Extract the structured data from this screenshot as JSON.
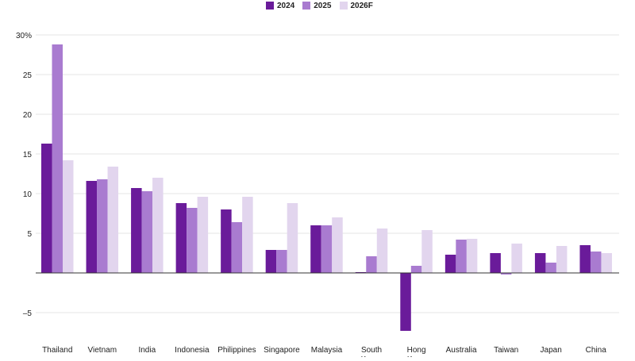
{
  "chart_data": {
    "type": "bar",
    "categories": [
      "Thailand",
      "Vietnam",
      "India",
      "Indonesia",
      "Philippines",
      "Singapore",
      "Malaysia",
      "South Korea",
      "Hong Kong",
      "Australia",
      "Taiwan",
      "Japan",
      "China"
    ],
    "series": [
      {
        "name": "2024",
        "color": "#6a1b9a",
        "values": [
          16.3,
          11.6,
          10.7,
          8.8,
          8.0,
          2.9,
          6.0,
          0.1,
          -7.3,
          2.3,
          2.5,
          2.5,
          3.5
        ]
      },
      {
        "name": "2025",
        "color": "#a97bd0",
        "values": [
          28.8,
          11.8,
          10.3,
          8.2,
          6.4,
          2.9,
          6.0,
          2.1,
          0.9,
          4.2,
          -0.2,
          1.3,
          2.7
        ]
      },
      {
        "name": "2026F",
        "color": "#e2d5ee",
        "values": [
          14.2,
          13.4,
          12.0,
          9.6,
          9.6,
          8.8,
          7.0,
          5.6,
          5.4,
          4.3,
          3.7,
          3.4,
          2.5
        ]
      }
    ],
    "ylim": [
      -7.5,
      30
    ],
    "yticks": [
      -5,
      0,
      5,
      10,
      15,
      20,
      25,
      30
    ],
    "ytick_labels": [
      "–5",
      "",
      "5",
      "10",
      "15",
      "20",
      "25",
      "30%"
    ],
    "grid": true,
    "legend_position": "top-center",
    "title": "",
    "xlabel": "",
    "ylabel": ""
  }
}
